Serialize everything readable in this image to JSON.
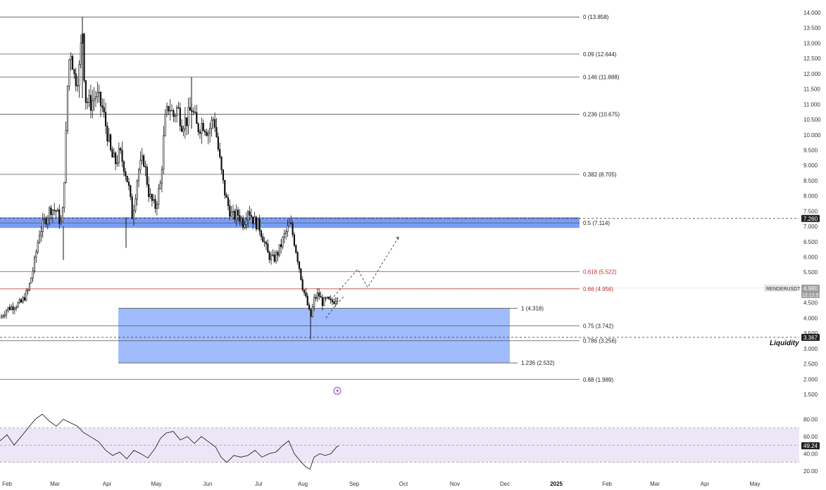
{
  "chart_data": {
    "type": "candlestick",
    "symbol": "RENDERUSDT",
    "price_axis": {
      "labels": [
        "14.000",
        "13.500",
        "13.000",
        "12.500",
        "12.000",
        "11.500",
        "11.000",
        "10.500",
        "10.000",
        "9.500",
        "9.000",
        "8.500",
        "8.000",
        "7.500",
        "7.000",
        "6.500",
        "6.000",
        "5.500",
        "5.000",
        "4.500",
        "4.000",
        "3.500",
        "3.000",
        "2.500",
        "2.000",
        "1.500"
      ],
      "ylim": [
        1.5,
        14.2
      ]
    },
    "time_axis": {
      "labels": [
        "Feb",
        "Mar",
        "Apr",
        "May",
        "Jun",
        "Jul",
        "Aug",
        "Sep",
        "Oct",
        "Nov",
        "Dec",
        "2025",
        "Feb",
        "Mar",
        "Apr",
        "May"
      ],
      "year_label": "2025"
    },
    "fib_levels": [
      {
        "ratio": "0",
        "price": 13.858,
        "label": "0 (13.858)",
        "color": "#555555"
      },
      {
        "ratio": "0.09",
        "price": 12.644,
        "label": "0.09 (12.644)",
        "color": "#555555"
      },
      {
        "ratio": "0.146",
        "price": 11.888,
        "label": "0.146 (11.888)",
        "color": "#555555"
      },
      {
        "ratio": "0.236",
        "price": 10.675,
        "label": "0.236 (10.675)",
        "color": "#555555"
      },
      {
        "ratio": "0.382",
        "price": 8.705,
        "label": "0.382 (8.705)",
        "color": "#555555"
      },
      {
        "ratio": "0.5",
        "price": 7.114,
        "label": "0.5 (7.114)",
        "color": "#555555"
      },
      {
        "ratio": "0.618",
        "price": 5.522,
        "label": "0.618 (5.522)",
        "color": "#c62828"
      },
      {
        "ratio": "0.66",
        "price": 4.956,
        "label": "0.66 (4.956)",
        "color": "#c62828"
      },
      {
        "ratio": "1",
        "price": 4.318,
        "label": "1 (4.318)",
        "color": "#555555"
      },
      {
        "ratio": "0.75",
        "price": 3.742,
        "label": "0.75 (3.742)",
        "color": "#555555"
      },
      {
        "ratio": "0.786",
        "price": 3.256,
        "label": "0.786 (3.256)",
        "color": "#555555"
      },
      {
        "ratio": "1.236",
        "price": 2.532,
        "label": "1.236 (2.532)",
        "color": "#555555"
      },
      {
        "ratio": "0.88",
        "price": 1.989,
        "label": "0.88 (1.989)",
        "color": "#555555"
      }
    ],
    "zones": [
      {
        "name": "resistance",
        "from_price": 6.95,
        "to_price": 7.3,
        "color": "#6f95f5"
      },
      {
        "name": "support",
        "from_price": 2.532,
        "to_price": 4.318,
        "color": "#8fb0fb"
      }
    ],
    "dashed_levels": [
      {
        "price": 7.26,
        "tag": "7.260"
      },
      {
        "price": 3.367,
        "tag": "3.367"
      }
    ],
    "annotation": "Liquidity",
    "current": {
      "ticker": "RENDERUSDT",
      "price": "4.980",
      "countdown": "12:12:57"
    },
    "projection": [
      [
        474,
        4.7
      ],
      [
        508,
        5.6
      ],
      [
        522,
        5.0
      ],
      [
        566,
        6.65
      ]
    ],
    "projection_path": [
      [
        463,
        4.0
      ],
      [
        474,
        4.35
      ],
      [
        488,
        4.7
      ]
    ],
    "rsi": {
      "value": "49.24",
      "labels": [
        "80.00",
        "60.00",
        "40.00",
        "20.00"
      ],
      "band": [
        30,
        70
      ],
      "ylim": [
        15,
        100
      ]
    },
    "colors": {
      "candle": "#111111",
      "resistance_zone": "#4d7cf3",
      "support_zone": "#8fb0fb",
      "rsi_band": "#ede6f6",
      "tag_bg": "#222222",
      "price_tag_bg": "#9e9e9e"
    }
  }
}
